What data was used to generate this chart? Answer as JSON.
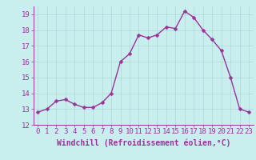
{
  "x": [
    0,
    1,
    2,
    3,
    4,
    5,
    6,
    7,
    8,
    9,
    10,
    11,
    12,
    13,
    14,
    15,
    16,
    17,
    18,
    19,
    20,
    21,
    22,
    23
  ],
  "y": [
    12.8,
    13.0,
    13.5,
    13.6,
    13.3,
    13.1,
    13.1,
    13.4,
    14.0,
    16.0,
    16.5,
    17.7,
    17.5,
    17.7,
    18.2,
    18.1,
    19.2,
    18.8,
    18.0,
    17.4,
    16.7,
    15.0,
    13.0,
    12.8
  ],
  "ylim": [
    12,
    19.5
  ],
  "yticks": [
    12,
    13,
    14,
    15,
    16,
    17,
    18,
    19
  ],
  "xticks": [
    0,
    1,
    2,
    3,
    4,
    5,
    6,
    7,
    8,
    9,
    10,
    11,
    12,
    13,
    14,
    15,
    16,
    17,
    18,
    19,
    20,
    21,
    22,
    23
  ],
  "line_color": "#993399",
  "marker_color": "#993399",
  "bg_color": "#c8eeed",
  "grid_color": "#b0d8d8",
  "xlabel": "Windchill (Refroidissement éolien,°C)",
  "xlabel_color": "#993399",
  "tick_color": "#993399",
  "font_size_label": 7,
  "font_size_tick": 6.5,
  "line_width": 1.0,
  "marker_size": 2.5,
  "spine_color": "#993399"
}
